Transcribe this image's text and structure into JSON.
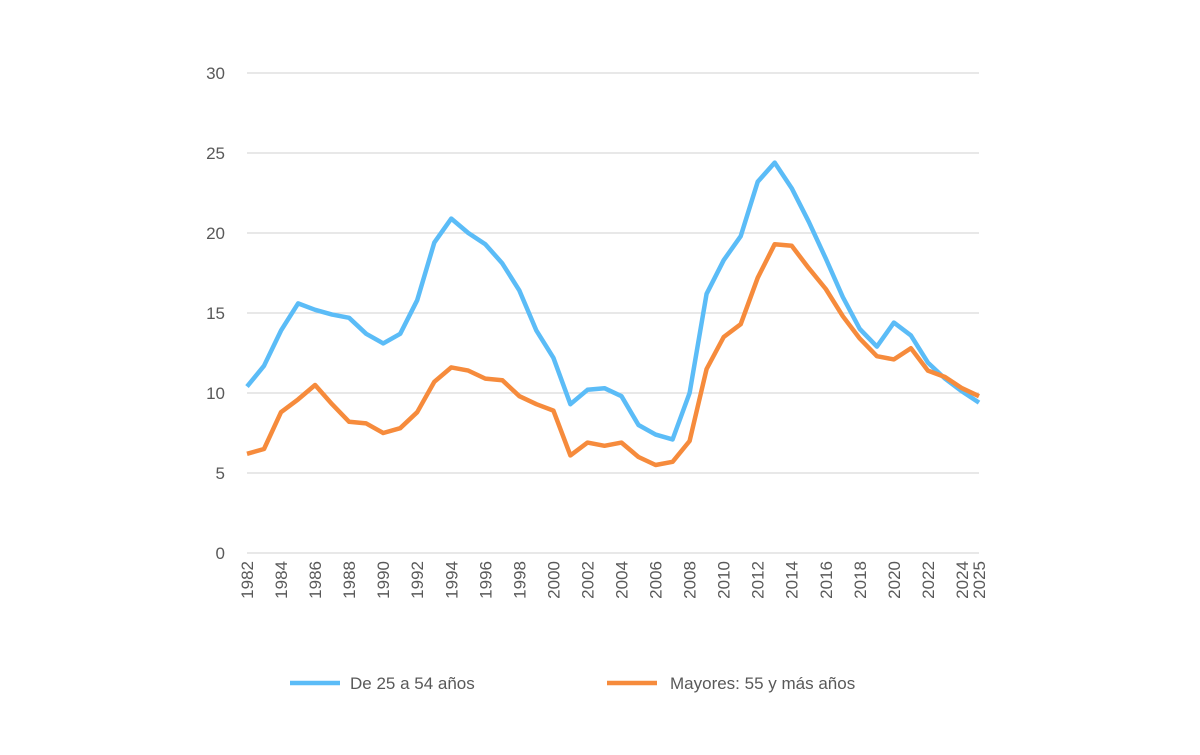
{
  "chart_data": {
    "type": "line",
    "title": "",
    "xlabel": "",
    "ylabel": "",
    "ylim": [
      0,
      30
    ],
    "yticks": [
      0,
      5,
      10,
      15,
      20,
      25,
      30
    ],
    "xtick_labels": [
      "1982",
      "1984",
      "1986",
      "1988",
      "1990",
      "1992",
      "1994",
      "1996",
      "1998",
      "2000",
      "2002",
      "2004",
      "2006",
      "2008",
      "2010",
      "2012",
      "2014",
      "2016",
      "2018",
      "2020",
      "2022",
      "2024",
      "2025"
    ],
    "grid": true,
    "legend_position": "bottom",
    "x": [
      1982,
      1983,
      1984,
      1985,
      1986,
      1987,
      1988,
      1989,
      1990,
      1991,
      1992,
      1993,
      1994,
      1995,
      1996,
      1997,
      1998,
      1999,
      2000,
      2001,
      2002,
      2003,
      2004,
      2005,
      2006,
      2007,
      2008,
      2009,
      2010,
      2011,
      2012,
      2013,
      2014,
      2015,
      2016,
      2017,
      2018,
      2019,
      2020,
      2021,
      2022,
      2023,
      2024,
      2025
    ],
    "series": [
      {
        "name": "De 25 a 54 años",
        "color": "#5BBCF7",
        "values": [
          10.4,
          11.7,
          13.9,
          15.6,
          15.2,
          14.9,
          14.7,
          13.7,
          13.1,
          13.7,
          15.8,
          19.4,
          20.9,
          20.0,
          19.3,
          18.1,
          16.4,
          13.9,
          12.2,
          9.3,
          10.2,
          10.3,
          9.8,
          8.0,
          7.4,
          7.1,
          10.0,
          16.2,
          18.3,
          19.8,
          23.2,
          24.4,
          22.8,
          20.7,
          18.4,
          16.0,
          14.0,
          12.9,
          14.4,
          13.6,
          11.9,
          10.9,
          10.1,
          9.4
        ]
      },
      {
        "name": "Mayores: 55 y más años",
        "color": "#F68B3C",
        "values": [
          6.2,
          6.5,
          8.8,
          9.6,
          10.5,
          9.3,
          8.2,
          8.1,
          7.5,
          7.8,
          8.8,
          10.7,
          11.6,
          11.4,
          10.9,
          10.8,
          9.8,
          9.3,
          8.9,
          6.1,
          6.9,
          6.7,
          6.9,
          6.0,
          5.5,
          5.7,
          7.0,
          11.5,
          13.5,
          14.3,
          17.2,
          19.3,
          19.2,
          17.8,
          16.5,
          14.8,
          13.4,
          12.3,
          12.1,
          12.8,
          11.4,
          11.0,
          10.3,
          9.8
        ]
      }
    ]
  }
}
